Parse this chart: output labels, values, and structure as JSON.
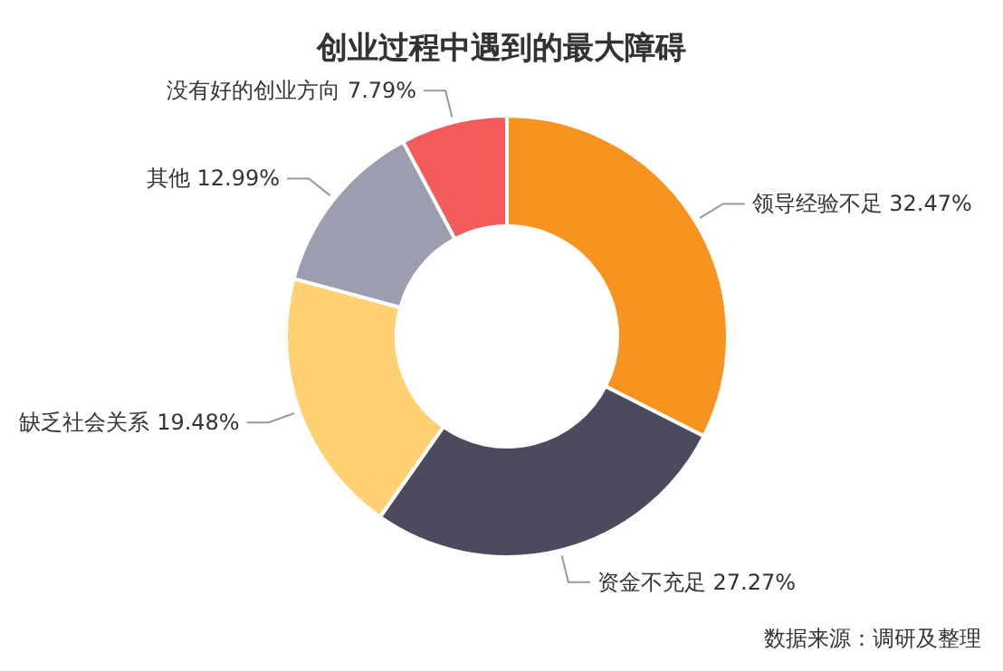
{
  "chart_data": {
    "type": "donut",
    "title": "创业过程中遇到的最大障碍",
    "categories": [
      "领导经验不足",
      "资金不充足",
      "缺乏社会关系",
      "其他",
      "没有好的创业方向"
    ],
    "values": [
      32.47,
      27.27,
      19.48,
      12.99,
      7.79
    ],
    "value_labels": [
      "32.47%",
      "27.27%",
      "19.48%",
      "12.99%",
      "7.79%"
    ],
    "colors": [
      "#f7931e",
      "#4b4a5e",
      "#ffd173",
      "#9d9db0",
      "#f45b5b"
    ],
    "annotations": [
      "数据来源：调研及整理"
    ]
  }
}
